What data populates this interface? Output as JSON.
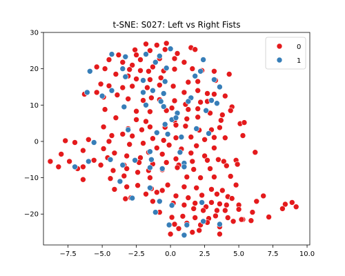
{
  "chart_data": {
    "type": "scatter",
    "title": "t-SNE: S027: Left vs Right Fists",
    "xlabel": "",
    "ylabel": "",
    "xlim": [
      -9.3,
      10.2
    ],
    "ylim": [
      -28.5,
      30.0
    ],
    "x_ticks": [
      -7.5,
      -5.0,
      -2.5,
      0.0,
      2.5,
      5.0,
      7.5,
      10.0
    ],
    "x_tick_labels": [
      "−7.5",
      "−5.0",
      "−2.5",
      "0.0",
      "2.5",
      "5.0",
      "7.5",
      "10.0"
    ],
    "y_ticks": [
      -20,
      -10,
      0,
      10,
      20,
      30
    ],
    "y_tick_labels": [
      "−20",
      "−10",
      "0",
      "10",
      "20",
      "30"
    ],
    "grid": false,
    "legend": {
      "placement": "top-right",
      "entries": [
        "0",
        "1"
      ]
    },
    "series": [
      {
        "name": "0",
        "color": "#e41a1c",
        "points": [
          [
            -1.8,
            26.8
          ],
          [
            -1.0,
            26.5
          ],
          [
            -0.3,
            27.0
          ],
          [
            -2.6,
            25.2
          ],
          [
            -1.5,
            25.0
          ],
          [
            -0.4,
            25.3
          ],
          [
            0.5,
            24.2
          ],
          [
            1.5,
            25.8
          ],
          [
            1.8,
            25.3
          ],
          [
            -3.8,
            23.8
          ],
          [
            -2.5,
            23.8
          ],
          [
            -2.2,
            22.5
          ],
          [
            -0.8,
            22.8
          ],
          [
            0.3,
            22.8
          ],
          [
            1.0,
            21.8
          ],
          [
            -4.5,
            22.5
          ],
          [
            -3.5,
            21.8
          ],
          [
            -2.8,
            21.0
          ],
          [
            -1.3,
            20.5
          ],
          [
            -5.4,
            20.5
          ],
          [
            -4.8,
            20.0
          ],
          [
            -3.0,
            19.8
          ],
          [
            -2.2,
            19.5
          ],
          [
            -1.6,
            19.3
          ],
          [
            -0.5,
            19.4
          ],
          [
            0.3,
            19.9
          ],
          [
            1.6,
            20.0
          ],
          [
            2.3,
            19.5
          ],
          [
            3.2,
            19.3
          ],
          [
            4.3,
            18.5
          ],
          [
            -4.0,
            18.5
          ],
          [
            -3.1,
            18.0
          ],
          [
            -2.5,
            17.2
          ],
          [
            -1.5,
            17.0
          ],
          [
            -0.7,
            17.5
          ],
          [
            1.3,
            16.3
          ],
          [
            2.0,
            16.5
          ],
          [
            3.3,
            16.8
          ],
          [
            -6.3,
            13.0
          ],
          [
            -5.4,
            13.5
          ],
          [
            -5.1,
            15.8
          ],
          [
            -4.5,
            15.3
          ],
          [
            -3.5,
            14.8
          ],
          [
            -2.8,
            15.2
          ],
          [
            -1.7,
            14.8
          ],
          [
            -0.8,
            15.5
          ],
          [
            0.2,
            15.2
          ],
          [
            1.0,
            13.5
          ],
          [
            2.0,
            14.0
          ],
          [
            2.7,
            13.2
          ],
          [
            3.2,
            13.0
          ],
          [
            4.0,
            12.5
          ],
          [
            -4.9,
            12.2
          ],
          [
            -3.9,
            12.8
          ],
          [
            -3.1,
            11.7
          ],
          [
            -2.0,
            11.3
          ],
          [
            -1.4,
            12.0
          ],
          [
            -0.8,
            11.5
          ],
          [
            0.3,
            11.2
          ],
          [
            1.1,
            10.2
          ],
          [
            2.2,
            10.8
          ],
          [
            2.7,
            11.0
          ],
          [
            4.5,
            9.5
          ],
          [
            -4.8,
            8.8
          ],
          [
            -2.5,
            8.3
          ],
          [
            -1.5,
            8.2
          ],
          [
            -0.3,
            8.5
          ],
          [
            0.1,
            9.2
          ],
          [
            1.3,
            8.8
          ],
          [
            2.0,
            9.0
          ],
          [
            2.9,
            7.8
          ],
          [
            3.8,
            7.3
          ],
          [
            4.4,
            8.5
          ],
          [
            -4.0,
            6.5
          ],
          [
            -2.5,
            6.0
          ],
          [
            -1.8,
            5.5
          ],
          [
            0.3,
            5.7
          ],
          [
            1.2,
            6.2
          ],
          [
            2.0,
            6.7
          ],
          [
            3.7,
            5.8
          ],
          [
            5.1,
            4.9
          ],
          [
            5.4,
            5.2
          ],
          [
            -4.9,
            4.0
          ],
          [
            -3.1,
            3.5
          ],
          [
            -2.1,
            3.2
          ],
          [
            -1.5,
            4.0
          ],
          [
            -0.4,
            3.9
          ],
          [
            0.4,
            4.5
          ],
          [
            1.1,
            4.2
          ],
          [
            2.1,
            3.1
          ],
          [
            3.0,
            3.2
          ],
          [
            3.6,
            3.8
          ],
          [
            5.3,
            1.6
          ],
          [
            -4.3,
            1.6
          ],
          [
            -3.5,
            2.0
          ],
          [
            -2.8,
            1.5
          ],
          [
            -1.3,
            0.8
          ],
          [
            -0.5,
            0.3
          ],
          [
            0.4,
            1.0
          ],
          [
            1.5,
            1.2
          ],
          [
            2.5,
            0.5
          ],
          [
            3.2,
            1.1
          ],
          [
            4.0,
            1.0
          ],
          [
            -7.7,
            0.2
          ],
          [
            -7.0,
            -0.3
          ],
          [
            -6.0,
            0.5
          ],
          [
            -4.5,
            0.0
          ],
          [
            -3.0,
            -0.8
          ],
          [
            -2.0,
            -0.5
          ],
          [
            -1.0,
            -1.8
          ],
          [
            -0.1,
            -1.0
          ],
          [
            0.8,
            -2.1
          ],
          [
            1.9,
            -1.2
          ],
          [
            3.2,
            -1.8
          ],
          [
            6.2,
            -3.0
          ],
          [
            -8.0,
            -3.5
          ],
          [
            -6.4,
            -2.5
          ],
          [
            -4.9,
            -2.0
          ],
          [
            -4.1,
            -3.2
          ],
          [
            -3.2,
            -4.0
          ],
          [
            -2.2,
            -4.5
          ],
          [
            -1.6,
            -3.0
          ],
          [
            -0.6,
            -3.5
          ],
          [
            0.4,
            -4.8
          ],
          [
            1.5,
            -3.2
          ],
          [
            2.5,
            -4.0
          ],
          [
            3.5,
            -5.0
          ],
          [
            -8.8,
            -5.5
          ],
          [
            -7.4,
            -5.5
          ],
          [
            -6.4,
            -7.0
          ],
          [
            -5.6,
            -5.2
          ],
          [
            -4.6,
            -4.5
          ],
          [
            -3.4,
            -6.5
          ],
          [
            -2.3,
            -5.8
          ],
          [
            -1.3,
            -6.2
          ],
          [
            -0.3,
            -5.8
          ],
          [
            0.6,
            -6.5
          ],
          [
            1.6,
            -5.5
          ],
          [
            2.7,
            -5.2
          ],
          [
            3.9,
            -5.5
          ],
          [
            4.8,
            -5.2
          ],
          [
            -8.2,
            -7.0
          ],
          [
            -6.8,
            -7.5
          ],
          [
            -5.1,
            -6.5
          ],
          [
            -4.2,
            -8.0
          ],
          [
            -3.2,
            -7.5
          ],
          [
            -2.4,
            -8.5
          ],
          [
            -1.6,
            -8.0
          ],
          [
            -0.6,
            -7.8
          ],
          [
            0.5,
            -7.2
          ],
          [
            1.7,
            -7.7
          ],
          [
            2.9,
            -7.5
          ],
          [
            4.1,
            -6.7
          ],
          [
            4.9,
            -6.3
          ],
          [
            -6.4,
            -10.5
          ],
          [
            -4.4,
            -10.2
          ],
          [
            -3.4,
            -9.5
          ],
          [
            -1.5,
            -10.0
          ],
          [
            1.2,
            -9.8
          ],
          [
            2.2,
            -10.0
          ],
          [
            3.2,
            -9.8
          ],
          [
            4.4,
            -9.6
          ],
          [
            -4.1,
            -13.2
          ],
          [
            -3.2,
            -12.5
          ],
          [
            -2.4,
            -12.1
          ],
          [
            -1.4,
            -13.0
          ],
          [
            -0.6,
            -13.5
          ],
          [
            -0.2,
            -12.0
          ],
          [
            1.0,
            -12.5
          ],
          [
            1.9,
            -12.8
          ],
          [
            3.0,
            -13.2
          ],
          [
            3.8,
            -13.5
          ],
          [
            4.8,
            -12.0
          ],
          [
            -3.3,
            -15.8
          ],
          [
            -2.9,
            -15.5
          ],
          [
            -1.8,
            -14.5
          ],
          [
            -1.0,
            -14.0
          ],
          [
            0.4,
            -15.0
          ],
          [
            1.3,
            -15.5
          ],
          [
            2.3,
            -14.8
          ],
          [
            3.4,
            -14.5
          ],
          [
            4.2,
            -15.2
          ],
          [
            4.5,
            -15.7
          ],
          [
            6.8,
            -15.0
          ],
          [
            -1.3,
            -16.5
          ],
          [
            0.2,
            -17.0
          ],
          [
            1.0,
            -17.5
          ],
          [
            1.8,
            -17.0
          ],
          [
            2.6,
            -18.0
          ],
          [
            3.0,
            -16.8
          ],
          [
            3.6,
            -17.2
          ],
          [
            4.1,
            -17.5
          ],
          [
            5.0,
            -17.5
          ],
          [
            6.3,
            -16.5
          ],
          [
            8.4,
            -17.3
          ],
          [
            8.9,
            -16.8
          ],
          [
            9.2,
            -18.0
          ],
          [
            -0.8,
            -19.5
          ],
          [
            1.7,
            -18.5
          ],
          [
            2.4,
            -19.0
          ],
          [
            3.4,
            -19.0
          ],
          [
            4.0,
            -19.0
          ],
          [
            5.0,
            -18.7
          ],
          [
            6.0,
            -19.5
          ],
          [
            8.2,
            -18.5
          ],
          [
            0.1,
            -20.9
          ],
          [
            0.9,
            -20.6
          ],
          [
            1.8,
            -21.0
          ],
          [
            2.8,
            -21.2
          ],
          [
            3.3,
            -20.5
          ],
          [
            4.2,
            -21.0
          ],
          [
            5.3,
            -21.5
          ],
          [
            5.9,
            -21.8
          ],
          [
            7.2,
            -20.8
          ],
          [
            0.3,
            -22.8
          ],
          [
            1.2,
            -22.5
          ],
          [
            2.2,
            -23.0
          ],
          [
            2.7,
            -22.3
          ],
          [
            3.6,
            -23.5
          ],
          [
            4.6,
            -22.0
          ],
          [
            5.2,
            -21.5
          ],
          [
            0.0,
            -25.5
          ],
          [
            0.6,
            -24.0
          ],
          [
            1.6,
            -25.0
          ],
          [
            2.1,
            -24.5
          ],
          [
            3.6,
            -25.5
          ]
        ]
      },
      {
        "name": "1",
        "color": "#377eb8",
        "points": [
          [
            -4.3,
            24.0
          ],
          [
            -3.3,
            23.3
          ],
          [
            -1.8,
            24.0
          ],
          [
            0.0,
            25.5
          ],
          [
            -0.8,
            23.5
          ],
          [
            -1.1,
            21.8
          ],
          [
            -0.3,
            20.2
          ],
          [
            2.4,
            22.5
          ],
          [
            -3.5,
            20.0
          ],
          [
            -5.9,
            19.3
          ],
          [
            -3.3,
            17.8
          ],
          [
            -2.0,
            16.8
          ],
          [
            -0.4,
            16.5
          ],
          [
            1.8,
            18.0
          ],
          [
            2.2,
            19.3
          ],
          [
            3.6,
            15.0
          ],
          [
            3.2,
            17.0
          ],
          [
            -6.1,
            13.5
          ],
          [
            -5.0,
            12.5
          ],
          [
            -4.3,
            14.0
          ],
          [
            -2.0,
            13.5
          ],
          [
            -1.3,
            14.0
          ],
          [
            -0.5,
            13.2
          ],
          [
            -0.7,
            11.0
          ],
          [
            1.5,
            12.0
          ],
          [
            3.0,
            11.3
          ],
          [
            -3.4,
            9.5
          ],
          [
            -1.8,
            10.0
          ],
          [
            -0.5,
            9.6
          ],
          [
            0.5,
            7.8
          ],
          [
            1.3,
            11.0
          ],
          [
            3.4,
            10.5
          ],
          [
            2.6,
            8.5
          ],
          [
            0.1,
            6.0
          ],
          [
            0.4,
            6.5
          ],
          [
            -0.4,
            4.7
          ],
          [
            -3.1,
            3.2
          ],
          [
            -1.0,
            2.4
          ],
          [
            -0.2,
            2.0
          ],
          [
            1.9,
            3.5
          ],
          [
            0.8,
            1.2
          ],
          [
            2.8,
            2.2
          ],
          [
            -5.6,
            -0.3
          ],
          [
            -1.5,
            -2.8
          ],
          [
            -1.4,
            -5.0
          ],
          [
            0.7,
            -3.0
          ],
          [
            1.0,
            -6.0
          ],
          [
            -7.0,
            -7.0
          ],
          [
            -6.0,
            -5.5
          ],
          [
            -4.4,
            -5.0
          ],
          [
            -3.5,
            -6.5
          ],
          [
            -2.6,
            -5.2
          ],
          [
            -0.6,
            -7.5
          ],
          [
            1.0,
            -7.0
          ],
          [
            -1.5,
            -7.2
          ],
          [
            -3.7,
            -11.0
          ],
          [
            -1.5,
            -12.8
          ],
          [
            -2.8,
            -15.6
          ],
          [
            -1.1,
            -19.5
          ],
          [
            0.1,
            -17.6
          ],
          [
            -0.8,
            -16.5
          ],
          [
            2.3,
            -16.8
          ],
          [
            -0.1,
            -23.0
          ],
          [
            1.0,
            -25.8
          ],
          [
            1.2,
            -23.0
          ],
          [
            2.4,
            -22.0
          ],
          [
            3.6,
            -22.8
          ]
        ]
      }
    ]
  }
}
